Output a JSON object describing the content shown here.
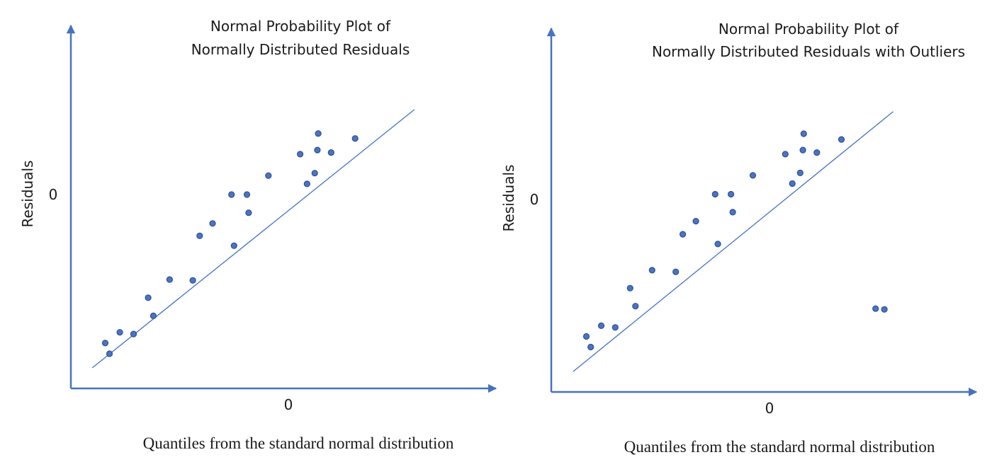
{
  "colors": {
    "axis": "#4472c4",
    "point": "#4a74c4",
    "line": "#4472c4"
  },
  "chart_data": [
    {
      "type": "scatter",
      "title_lines": [
        "Normal Probability Plot of",
        "Normally Distributed Residuals"
      ],
      "xlabel": "Quantiles from the standard normal distribution",
      "ylabel": "Residuals",
      "xticks": [
        {
          "value": 0,
          "label": "0"
        }
      ],
      "yticks": [
        {
          "value": 0,
          "label": "0"
        }
      ],
      "xlim": [
        -2.25,
        2.7
      ],
      "ylim": [
        -2.15,
        2.25
      ],
      "fit_line": {
        "x": [
          -2.0,
          1.75
        ],
        "y": [
          -1.9,
          1.23
        ]
      },
      "series": [
        {
          "x": [
            -1.85,
            -1.8,
            -1.68,
            -1.52,
            -1.35,
            -1.29,
            -1.1,
            -0.83,
            -0.75,
            -0.6,
            -0.38,
            -0.35,
            -0.2,
            -0.18,
            0.05,
            0.42,
            0.5,
            0.59,
            0.62,
            0.63,
            0.78,
            1.06
          ],
          "y": [
            -1.6,
            -1.73,
            -1.47,
            -1.49,
            -1.05,
            -1.27,
            -0.83,
            -0.84,
            -0.3,
            -0.15,
            0.2,
            -0.42,
            0.2,
            -0.02,
            0.43,
            0.69,
            0.33,
            0.46,
            0.74,
            0.94,
            0.71,
            0.88
          ]
        }
      ],
      "grid": false,
      "legend": "none"
    },
    {
      "type": "scatter",
      "title_lines": [
        "Normal Probability Plot of",
        "Normally Distributed Residuals with Outliers"
      ],
      "xlabel": "Quantiles from the standard normal distribution",
      "ylabel": "Residuals",
      "xticks": [
        {
          "value": 0,
          "label": "0"
        }
      ],
      "yticks": [
        {
          "value": 0,
          "label": "0"
        }
      ],
      "xlim": [
        -2.25,
        2.6
      ],
      "ylim": [
        -2.2,
        2.25
      ],
      "fit_line": {
        "x": [
          -2.0,
          1.65
        ],
        "y": [
          -1.95,
          1.23
        ]
      },
      "series": [
        {
          "x": [
            -1.85,
            -1.8,
            -1.68,
            -1.52,
            -1.35,
            -1.29,
            -1.1,
            -0.83,
            -0.75,
            -0.6,
            -0.38,
            -0.35,
            -0.2,
            -0.18,
            0.05,
            0.42,
            0.5,
            0.59,
            0.62,
            0.63,
            0.78,
            1.06,
            1.45,
            1.55
          ],
          "y": [
            -1.52,
            -1.65,
            -1.39,
            -1.41,
            -0.93,
            -1.15,
            -0.71,
            -0.73,
            -0.27,
            -0.11,
            0.22,
            -0.39,
            0.22,
            0.0,
            0.45,
            0.71,
            0.35,
            0.48,
            0.76,
            0.96,
            0.73,
            0.89,
            -1.18,
            -1.19
          ]
        }
      ],
      "grid": false,
      "legend": "none"
    }
  ]
}
